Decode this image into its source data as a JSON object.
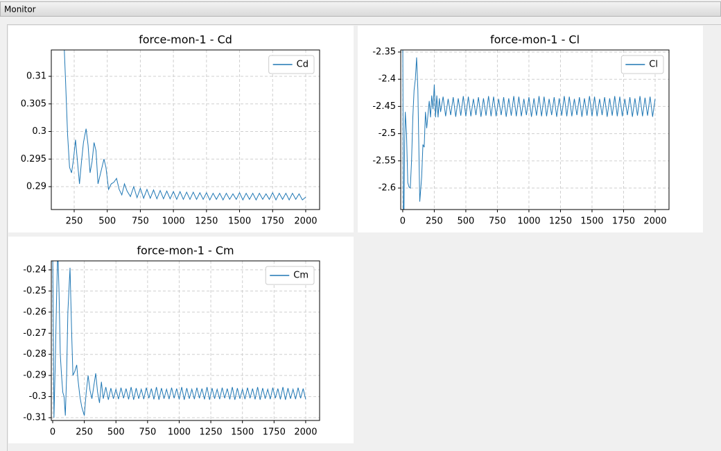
{
  "window": {
    "title": "Monitor"
  },
  "chart_data": [
    {
      "type": "line",
      "title": "force-mon-1 - Cd",
      "x": [
        170,
        185,
        200,
        215,
        230,
        245,
        260,
        275,
        290,
        305,
        320,
        340,
        355,
        370,
        385,
        400,
        415,
        430,
        450,
        475,
        490,
        510,
        530,
        550,
        570,
        590,
        610,
        630,
        650,
        675,
        700,
        725,
        750,
        775,
        800,
        825,
        850,
        875,
        900,
        925,
        950,
        975,
        1000,
        1025,
        1050,
        1075,
        1100,
        1125,
        1150,
        1175,
        1200,
        1225,
        1250,
        1275,
        1300,
        1325,
        1350,
        1375,
        1400,
        1425,
        1450,
        1475,
        1500,
        1525,
        1550,
        1575,
        1600,
        1625,
        1650,
        1675,
        1700,
        1725,
        1750,
        1775,
        1800,
        1825,
        1850,
        1875,
        1900,
        1925,
        1950,
        1975,
        2000
      ],
      "series": [
        {
          "name": "Cd",
          "color": "#1f77b4",
          "values": [
            0.318,
            0.309,
            0.2995,
            0.2935,
            0.2925,
            0.295,
            0.2985,
            0.2945,
            0.2905,
            0.2945,
            0.298,
            0.3005,
            0.2975,
            0.2925,
            0.2945,
            0.298,
            0.2965,
            0.2905,
            0.2925,
            0.295,
            0.2935,
            0.2895,
            0.2905,
            0.2908,
            0.2915,
            0.2895,
            0.2885,
            0.2905,
            0.2892,
            0.2882,
            0.29,
            0.288,
            0.2897,
            0.2879,
            0.2895,
            0.2879,
            0.2894,
            0.2878,
            0.2893,
            0.2878,
            0.2892,
            0.2878,
            0.2891,
            0.2877,
            0.2891,
            0.2877,
            0.289,
            0.2877,
            0.289,
            0.2877,
            0.2889,
            0.2877,
            0.2889,
            0.2876,
            0.2888,
            0.2877,
            0.2888,
            0.2876,
            0.2888,
            0.2877,
            0.2887,
            0.2877,
            0.2889,
            0.2876,
            0.2888,
            0.2877,
            0.2888,
            0.2876,
            0.2888,
            0.2877,
            0.2887,
            0.2877,
            0.2889,
            0.2876,
            0.2888,
            0.2877,
            0.2888,
            0.2876,
            0.2888,
            0.2877,
            0.2887,
            0.2876,
            0.2881
          ]
        }
      ],
      "xlim": [
        77,
        2105
      ],
      "ylim": [
        0.28585,
        0.31478
      ],
      "xticks": [
        250,
        500,
        750,
        1000,
        1250,
        1500,
        1750,
        2000
      ],
      "yticks": [
        0.29,
        0.295,
        0.3,
        0.305,
        0.31
      ],
      "grid": true,
      "legend": "upper right"
    },
    {
      "type": "line",
      "title": "force-mon-1 - Cl",
      "x": [
        0,
        5,
        10,
        15,
        20,
        30,
        40,
        50,
        60,
        70,
        80,
        90,
        100,
        110,
        120,
        135,
        150,
        160,
        170,
        180,
        190,
        200,
        210,
        220,
        230,
        240,
        250,
        260,
        270,
        280,
        290,
        300,
        320,
        340,
        360,
        380,
        400,
        420,
        440,
        460,
        480,
        500,
        520,
        540,
        560,
        580,
        600,
        620,
        640,
        660,
        680,
        700,
        720,
        740,
        760,
        780,
        800,
        820,
        840,
        860,
        880,
        900,
        920,
        940,
        960,
        980,
        1000,
        1020,
        1040,
        1060,
        1080,
        1100,
        1120,
        1140,
        1160,
        1180,
        1200,
        1220,
        1240,
        1260,
        1280,
        1300,
        1320,
        1340,
        1360,
        1380,
        1400,
        1420,
        1440,
        1460,
        1480,
        1500,
        1520,
        1540,
        1560,
        1580,
        1600,
        1620,
        1640,
        1660,
        1680,
        1700,
        1720,
        1740,
        1760,
        1780,
        1800,
        1820,
        1840,
        1860,
        1880,
        1900,
        1920,
        1940,
        1960,
        1980,
        2000
      ],
      "series": [
        {
          "name": "Cl",
          "color": "#1f77b4",
          "values": [
            -2.3,
            -2.64,
            -2.64,
            -2.52,
            -2.46,
            -2.5,
            -2.59,
            -2.598,
            -2.6,
            -2.55,
            -2.47,
            -2.42,
            -2.4,
            -2.36,
            -2.42,
            -2.625,
            -2.58,
            -2.52,
            -2.525,
            -2.46,
            -2.49,
            -2.465,
            -2.44,
            -2.47,
            -2.43,
            -2.455,
            -2.41,
            -2.47,
            -2.43,
            -2.47,
            -2.435,
            -2.46,
            -2.432,
            -2.468,
            -2.436,
            -2.466,
            -2.433,
            -2.469,
            -2.435,
            -2.467,
            -2.431,
            -2.468,
            -2.432,
            -2.468,
            -2.436,
            -2.466,
            -2.433,
            -2.469,
            -2.435,
            -2.467,
            -2.431,
            -2.468,
            -2.432,
            -2.468,
            -2.436,
            -2.466,
            -2.433,
            -2.469,
            -2.435,
            -2.467,
            -2.431,
            -2.468,
            -2.432,
            -2.468,
            -2.436,
            -2.466,
            -2.433,
            -2.469,
            -2.435,
            -2.467,
            -2.431,
            -2.468,
            -2.432,
            -2.468,
            -2.436,
            -2.466,
            -2.433,
            -2.469,
            -2.435,
            -2.467,
            -2.431,
            -2.468,
            -2.432,
            -2.468,
            -2.436,
            -2.466,
            -2.433,
            -2.469,
            -2.435,
            -2.467,
            -2.431,
            -2.468,
            -2.432,
            -2.468,
            -2.436,
            -2.466,
            -2.433,
            -2.469,
            -2.435,
            -2.467,
            -2.431,
            -2.468,
            -2.432,
            -2.468,
            -2.436,
            -2.466,
            -2.433,
            -2.469,
            -2.435,
            -2.467,
            -2.431,
            -2.468,
            -2.434,
            -2.467,
            -2.432,
            -2.469,
            -2.436
          ]
        }
      ],
      "xlim": [
        -16,
        2110
      ],
      "ylim": [
        -2.6395,
        -2.3462
      ],
      "xticks": [
        0,
        250,
        500,
        750,
        1000,
        1250,
        1500,
        1750,
        2000
      ],
      "yticks": [
        -2.6,
        -2.55,
        -2.5,
        -2.45,
        -2.4,
        -2.35
      ],
      "grid": true,
      "legend": "upper right"
    },
    {
      "type": "line",
      "title": "force-mon-1 - Cm",
      "x": [
        0,
        10,
        20,
        30,
        40,
        50,
        60,
        70,
        80,
        90,
        100,
        110,
        120,
        137,
        150,
        160,
        175,
        190,
        200,
        215,
        230,
        250,
        265,
        280,
        295,
        310,
        325,
        340,
        355,
        370,
        385,
        400,
        420,
        440,
        460,
        480,
        500,
        520,
        540,
        560,
        580,
        600,
        620,
        640,
        660,
        680,
        700,
        720,
        740,
        760,
        780,
        800,
        820,
        840,
        860,
        880,
        900,
        920,
        940,
        960,
        980,
        1000,
        1020,
        1040,
        1060,
        1080,
        1100,
        1120,
        1140,
        1160,
        1180,
        1200,
        1220,
        1240,
        1260,
        1280,
        1300,
        1320,
        1340,
        1360,
        1380,
        1400,
        1420,
        1440,
        1460,
        1480,
        1500,
        1520,
        1540,
        1560,
        1580,
        1600,
        1620,
        1640,
        1660,
        1680,
        1700,
        1720,
        1740,
        1760,
        1780,
        1800,
        1820,
        1840,
        1860,
        1880,
        1900,
        1920,
        1940,
        1960,
        1980,
        2000
      ],
      "series": [
        {
          "name": "Cm",
          "color": "#1f77b4",
          "values": [
            -0.23,
            -0.31,
            -0.285,
            -0.255,
            -0.23,
            -0.25,
            -0.28,
            -0.29,
            -0.298,
            -0.3,
            -0.309,
            -0.29,
            -0.26,
            -0.239,
            -0.27,
            -0.29,
            -0.288,
            -0.285,
            -0.292,
            -0.3,
            -0.305,
            -0.309,
            -0.298,
            -0.29,
            -0.297,
            -0.301,
            -0.295,
            -0.289,
            -0.298,
            -0.303,
            -0.293,
            -0.301,
            -0.2955,
            -0.3015,
            -0.296,
            -0.301,
            -0.2965,
            -0.3012,
            -0.2958,
            -0.3008,
            -0.2962,
            -0.3013,
            -0.2955,
            -0.3015,
            -0.296,
            -0.301,
            -0.2965,
            -0.3012,
            -0.2958,
            -0.3008,
            -0.2962,
            -0.3013,
            -0.2955,
            -0.3015,
            -0.296,
            -0.301,
            -0.2965,
            -0.3012,
            -0.2958,
            -0.3008,
            -0.2962,
            -0.3013,
            -0.2955,
            -0.3015,
            -0.296,
            -0.301,
            -0.2965,
            -0.3012,
            -0.2958,
            -0.3008,
            -0.2962,
            -0.3013,
            -0.2955,
            -0.3015,
            -0.296,
            -0.301,
            -0.2965,
            -0.3012,
            -0.2958,
            -0.3008,
            -0.2962,
            -0.3013,
            -0.2955,
            -0.3015,
            -0.296,
            -0.301,
            -0.2965,
            -0.3012,
            -0.2958,
            -0.3008,
            -0.2962,
            -0.3013,
            -0.2955,
            -0.3015,
            -0.296,
            -0.301,
            -0.2965,
            -0.3012,
            -0.2958,
            -0.3008,
            -0.2962,
            -0.3013,
            -0.2955,
            -0.3015,
            -0.296,
            -0.301,
            -0.2965,
            -0.3012,
            -0.2958,
            -0.3008,
            -0.2962,
            -0.3013
          ]
        }
      ],
      "xlim": [
        -11,
        2110
      ],
      "ylim": [
        -0.31131,
        -0.23575
      ],
      "xticks": [
        0,
        250,
        500,
        750,
        1000,
        1250,
        1500,
        1750,
        2000
      ],
      "yticks": [
        -0.31,
        -0.3,
        -0.29,
        -0.28,
        -0.27,
        -0.26,
        -0.25,
        -0.24
      ],
      "grid": true,
      "legend": "upper right"
    }
  ]
}
